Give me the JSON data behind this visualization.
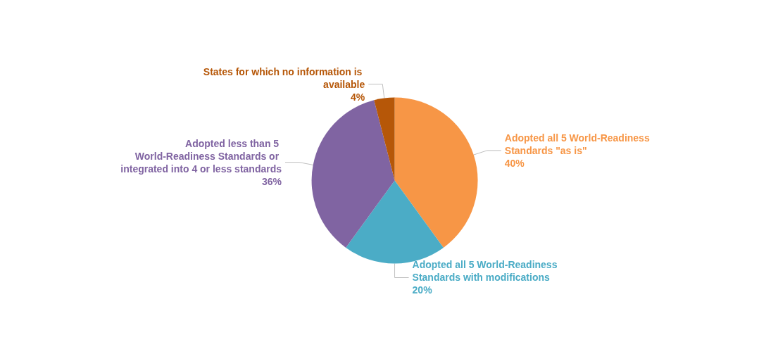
{
  "chart_data": {
    "type": "pie",
    "categories": [
      "Adopted all 5 World-Readiness Standards \"as is\"",
      "Adopted all 5 World-Readiness Standards with modifications",
      "Adopted less than 5 World-Readiness Standards or integrated into 4 or less standards",
      "States for which no information is available"
    ],
    "values": [
      40,
      20,
      36,
      4
    ],
    "value_labels": [
      "40%",
      "20%",
      "36%",
      "4%"
    ],
    "colors": [
      "#f79646",
      "#4bacc6",
      "#8064a2",
      "#b65708"
    ],
    "legend": false
  }
}
